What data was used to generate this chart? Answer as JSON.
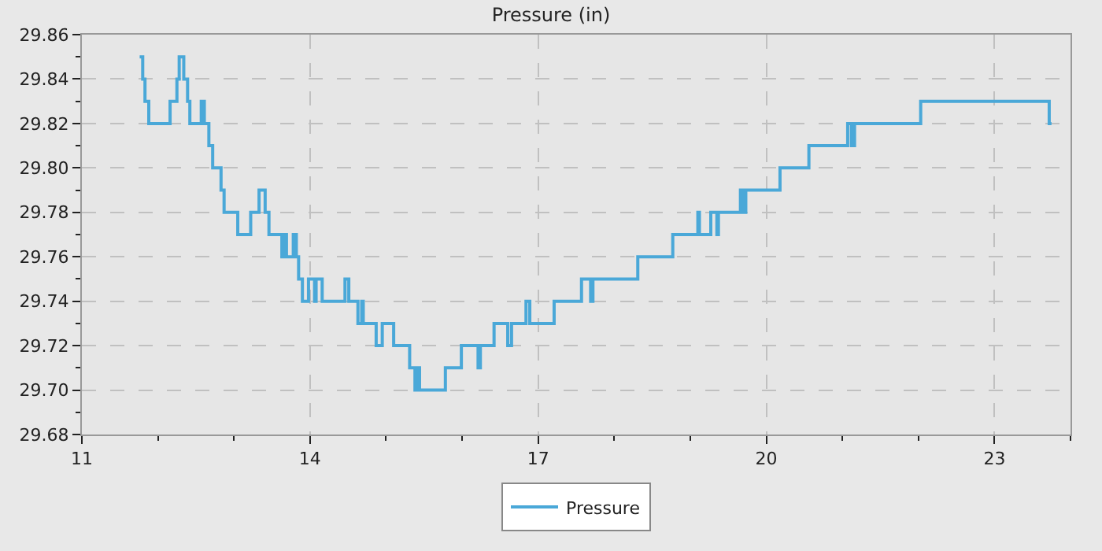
{
  "chart_data": {
    "type": "step",
    "title": "Pressure (in)",
    "x": [
      11.76,
      11.8,
      11.83,
      11.88,
      12.16,
      12.25,
      12.28,
      12.34,
      12.39,
      12.42,
      12.45,
      12.57,
      12.61,
      12.67,
      12.72,
      12.83,
      12.87,
      13.05,
      13.22,
      13.33,
      13.41,
      13.46,
      13.63,
      13.66,
      13.69,
      13.73,
      13.78,
      13.82,
      13.85,
      13.9,
      13.98,
      14.06,
      14.08,
      14.14,
      14.16,
      14.46,
      14.51,
      14.63,
      14.68,
      14.7,
      14.87,
      14.95,
      15.1,
      15.31,
      15.38,
      15.41,
      15.44,
      15.47,
      15.78,
      15.99,
      16.21,
      16.24,
      16.42,
      16.6,
      16.63,
      16.65,
      16.84,
      16.89,
      17.21,
      17.57,
      17.69,
      17.72,
      18.31,
      18.77,
      19.1,
      19.12,
      19.27,
      19.35,
      19.37,
      19.66,
      19.7,
      19.73,
      19.77,
      20.18,
      20.56,
      21.07,
      21.12,
      21.16,
      21.19,
      22.03,
      23.72,
      23.75
    ],
    "series": [
      {
        "name": "Pressure",
        "color": "#4aa8d8",
        "values": [
          29.85,
          29.84,
          29.83,
          29.82,
          29.83,
          29.84,
          29.85,
          29.84,
          29.83,
          29.82,
          29.82,
          29.83,
          29.82,
          29.81,
          29.8,
          29.79,
          29.78,
          29.77,
          29.78,
          29.79,
          29.78,
          29.77,
          29.76,
          29.77,
          29.76,
          29.76,
          29.77,
          29.76,
          29.75,
          29.74,
          29.75,
          29.74,
          29.75,
          29.75,
          29.74,
          29.75,
          29.74,
          29.73,
          29.74,
          29.73,
          29.72,
          29.73,
          29.72,
          29.71,
          29.7,
          29.71,
          29.7,
          29.7,
          29.71,
          29.72,
          29.71,
          29.72,
          29.73,
          29.72,
          29.72,
          29.73,
          29.74,
          29.73,
          29.74,
          29.75,
          29.74,
          29.75,
          29.76,
          29.77,
          29.78,
          29.77,
          29.78,
          29.77,
          29.78,
          29.79,
          29.78,
          29.79,
          29.79,
          29.8,
          29.81,
          29.82,
          29.81,
          29.82,
          29.82,
          29.83,
          29.82,
          29.82
        ]
      }
    ],
    "xlim": [
      11,
      24
    ],
    "xticks": [
      11,
      {
        "value": 12,
        "label": null
      },
      {
        "value": 13,
        "label": null
      },
      14,
      {
        "value": 15,
        "label": null
      },
      {
        "value": 16,
        "label": null
      },
      17,
      {
        "value": 18,
        "label": null
      },
      {
        "value": 19,
        "label": null
      },
      20,
      {
        "value": 21,
        "label": null
      },
      {
        "value": 22,
        "label": null
      },
      23,
      {
        "value": 24,
        "label": null
      }
    ],
    "ylim": [
      29.68,
      29.86
    ],
    "yticks": [
      {
        "value": 29.68,
        "label": "29.68"
      },
      {
        "value": 29.69,
        "label": null
      },
      {
        "value": 29.7,
        "label": "29.70"
      },
      {
        "value": 29.71,
        "label": null
      },
      {
        "value": 29.72,
        "label": "29.72"
      },
      {
        "value": 29.73,
        "label": null
      },
      {
        "value": 29.74,
        "label": "29.74"
      },
      {
        "value": 29.75,
        "label": null
      },
      {
        "value": 29.76,
        "label": "29.76"
      },
      {
        "value": 29.77,
        "label": null
      },
      {
        "value": 29.78,
        "label": "29.78"
      },
      {
        "value": 29.79,
        "label": null
      },
      {
        "value": 29.8,
        "label": "29.80"
      },
      {
        "value": 29.81,
        "label": null
      },
      {
        "value": 29.82,
        "label": "29.82"
      },
      {
        "value": 29.83,
        "label": null
      },
      {
        "value": 29.84,
        "label": "29.84"
      },
      {
        "value": 29.85,
        "label": null
      },
      {
        "value": 29.86,
        "label": "29.86"
      }
    ],
    "grid": true,
    "legend": "bottom",
    "line_style": "solid",
    "marker": "none"
  }
}
